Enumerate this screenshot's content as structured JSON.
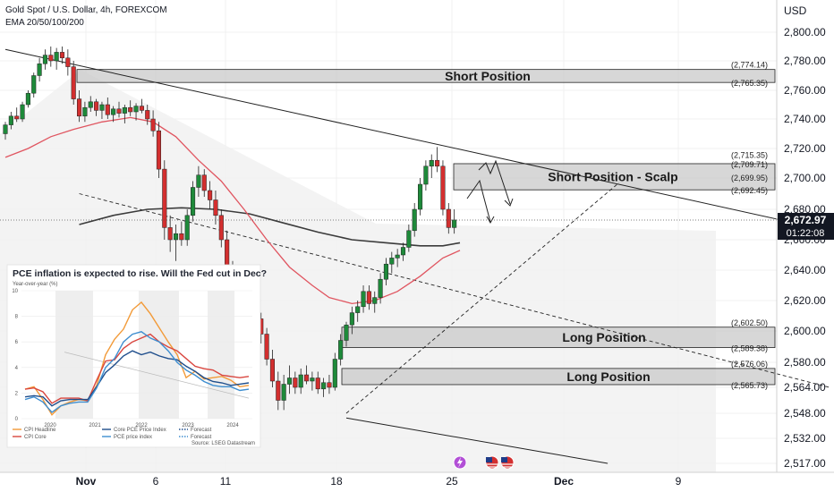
{
  "header": {
    "title": "Gold Spot / U.S. Dollar, 4h, FOREXCOM",
    "indicator": "EMA 20/50/100/200",
    "currency": "USD"
  },
  "colors": {
    "bull": "#1e8a3a",
    "bear": "#d32f2f",
    "ema50": "#e05560",
    "ema200": "#3b3b3b",
    "zone_fill": "#cfcfcf",
    "price_badge": "#131722"
  },
  "chart_data": {
    "type": "candlestick",
    "symbol": "Gold Spot / U.S. Dollar",
    "timeframe": "4h",
    "source": "FOREXCOM",
    "y_ticks": [
      "2,800.00",
      "2,780.00",
      "2,760.00",
      "2,740.00",
      "2,720.00",
      "2,700.00",
      "2,680.00",
      "2,660.00",
      "2,640.00",
      "2,620.00",
      "2,600.00",
      "2,580.00",
      "2,564.00",
      "2,548.00",
      "2,532.00",
      "2,517.00"
    ],
    "x_ticks": [
      "Nov",
      "6",
      "11",
      "18",
      "25",
      "Dec",
      "9"
    ],
    "last_price": "2,672.97",
    "countdown": "01:22:08",
    "trendlines": [
      {
        "name": "upper-downtrend",
        "x": [
          0,
          145
        ],
        "y": [
          2788,
          2666
        ]
      },
      {
        "name": "lower-downtrend",
        "x": [
          60,
          106
        ],
        "y": [
          2545,
          2515
        ]
      },
      {
        "name": "mid-downtrend-dashed",
        "x": [
          13,
          145
        ],
        "y": [
          2690,
          2564
        ]
      },
      {
        "name": "rising-support-dashed",
        "x": [
          60,
          108
        ],
        "y": [
          2548,
          2697
        ]
      }
    ],
    "zones": [
      {
        "label": "Short Position",
        "top": 2774.14,
        "bottom": 2765.35,
        "top_label": "(2,774.14)",
        "bottom_label": "(2,765.35)"
      },
      {
        "label": "Short Position - Scalp",
        "top": 2709.71,
        "bottom": 2692.45,
        "upper_label": "(2,715.35)",
        "top_label": "(2,709.71)",
        "mid_label": "(2,699.95)",
        "bottom_label": "(2,692.45)"
      },
      {
        "label": "Long Position",
        "top": 2602.5,
        "bottom": 2589.38,
        "top_label": "(2,602.50)",
        "bottom_label": "(2,589.38)"
      },
      {
        "label": "Long Position",
        "top": 2576.06,
        "bottom": 2565.73,
        "top_label": "(2,576.06)",
        "bottom_label": "(2,565.73)"
      }
    ],
    "candles": [
      {
        "o": 2730,
        "h": 2738,
        "l": 2726,
        "c": 2736
      },
      {
        "o": 2736,
        "h": 2745,
        "l": 2733,
        "c": 2742
      },
      {
        "o": 2742,
        "h": 2748,
        "l": 2738,
        "c": 2740
      },
      {
        "o": 2740,
        "h": 2752,
        "l": 2738,
        "c": 2750
      },
      {
        "o": 2750,
        "h": 2760,
        "l": 2748,
        "c": 2758
      },
      {
        "o": 2758,
        "h": 2772,
        "l": 2755,
        "c": 2770
      },
      {
        "o": 2770,
        "h": 2782,
        "l": 2766,
        "c": 2778
      },
      {
        "o": 2778,
        "h": 2788,
        "l": 2774,
        "c": 2784
      },
      {
        "o": 2784,
        "h": 2790,
        "l": 2776,
        "c": 2780
      },
      {
        "o": 2780,
        "h": 2789,
        "l": 2774,
        "c": 2786
      },
      {
        "o": 2786,
        "h": 2790,
        "l": 2778,
        "c": 2782
      },
      {
        "o": 2782,
        "h": 2788,
        "l": 2770,
        "c": 2776
      },
      {
        "o": 2776,
        "h": 2780,
        "l": 2750,
        "c": 2754
      },
      {
        "o": 2754,
        "h": 2760,
        "l": 2738,
        "c": 2742
      },
      {
        "o": 2742,
        "h": 2752,
        "l": 2738,
        "c": 2748
      },
      {
        "o": 2748,
        "h": 2756,
        "l": 2745,
        "c": 2752
      },
      {
        "o": 2752,
        "h": 2754,
        "l": 2742,
        "c": 2746
      },
      {
        "o": 2746,
        "h": 2752,
        "l": 2740,
        "c": 2750
      },
      {
        "o": 2750,
        "h": 2755,
        "l": 2740,
        "c": 2743
      },
      {
        "o": 2743,
        "h": 2749,
        "l": 2738,
        "c": 2747
      },
      {
        "o": 2747,
        "h": 2752,
        "l": 2741,
        "c": 2744
      },
      {
        "o": 2744,
        "h": 2750,
        "l": 2737,
        "c": 2748
      },
      {
        "o": 2748,
        "h": 2753,
        "l": 2742,
        "c": 2745
      },
      {
        "o": 2745,
        "h": 2751,
        "l": 2739,
        "c": 2749
      },
      {
        "o": 2749,
        "h": 2754,
        "l": 2744,
        "c": 2746
      },
      {
        "o": 2746,
        "h": 2750,
        "l": 2736,
        "c": 2740
      },
      {
        "o": 2740,
        "h": 2746,
        "l": 2728,
        "c": 2732
      },
      {
        "o": 2732,
        "h": 2738,
        "l": 2700,
        "c": 2706
      },
      {
        "o": 2706,
        "h": 2712,
        "l": 2660,
        "c": 2668
      },
      {
        "o": 2668,
        "h": 2676,
        "l": 2652,
        "c": 2660
      },
      {
        "o": 2660,
        "h": 2670,
        "l": 2646,
        "c": 2664
      },
      {
        "o": 2664,
        "h": 2672,
        "l": 2656,
        "c": 2660
      },
      {
        "o": 2660,
        "h": 2680,
        "l": 2656,
        "c": 2676
      },
      {
        "o": 2676,
        "h": 2698,
        "l": 2672,
        "c": 2694
      },
      {
        "o": 2694,
        "h": 2708,
        "l": 2688,
        "c": 2702
      },
      {
        "o": 2702,
        "h": 2706,
        "l": 2688,
        "c": 2692
      },
      {
        "o": 2692,
        "h": 2698,
        "l": 2680,
        "c": 2686
      },
      {
        "o": 2686,
        "h": 2692,
        "l": 2670,
        "c": 2676
      },
      {
        "o": 2676,
        "h": 2680,
        "l": 2655,
        "c": 2660
      },
      {
        "o": 2660,
        "h": 2666,
        "l": 2636,
        "c": 2642
      },
      {
        "o": 2642,
        "h": 2646,
        "l": 2612,
        "c": 2618
      },
      {
        "o": 2618,
        "h": 2624,
        "l": 2606,
        "c": 2610
      },
      {
        "o": 2610,
        "h": 2616,
        "l": 2600,
        "c": 2612
      },
      {
        "o": 2612,
        "h": 2616,
        "l": 2598,
        "c": 2604
      },
      {
        "o": 2604,
        "h": 2612,
        "l": 2596,
        "c": 2608
      },
      {
        "o": 2608,
        "h": 2612,
        "l": 2592,
        "c": 2598
      },
      {
        "o": 2598,
        "h": 2602,
        "l": 2578,
        "c": 2582
      },
      {
        "o": 2582,
        "h": 2588,
        "l": 2564,
        "c": 2568
      },
      {
        "o": 2568,
        "h": 2574,
        "l": 2550,
        "c": 2556
      },
      {
        "o": 2556,
        "h": 2572,
        "l": 2550,
        "c": 2566
      },
      {
        "o": 2566,
        "h": 2578,
        "l": 2560,
        "c": 2570
      },
      {
        "o": 2570,
        "h": 2574,
        "l": 2560,
        "c": 2564
      },
      {
        "o": 2564,
        "h": 2576,
        "l": 2560,
        "c": 2572
      },
      {
        "o": 2572,
        "h": 2578,
        "l": 2566,
        "c": 2568
      },
      {
        "o": 2568,
        "h": 2574,
        "l": 2562,
        "c": 2570
      },
      {
        "o": 2570,
        "h": 2574,
        "l": 2560,
        "c": 2563
      },
      {
        "o": 2563,
        "h": 2570,
        "l": 2558,
        "c": 2567
      },
      {
        "o": 2567,
        "h": 2572,
        "l": 2560,
        "c": 2564
      },
      {
        "o": 2564,
        "h": 2586,
        "l": 2562,
        "c": 2582
      },
      {
        "o": 2582,
        "h": 2598,
        "l": 2578,
        "c": 2594
      },
      {
        "o": 2594,
        "h": 2606,
        "l": 2590,
        "c": 2604
      },
      {
        "o": 2604,
        "h": 2616,
        "l": 2598,
        "c": 2612
      },
      {
        "o": 2612,
        "h": 2620,
        "l": 2606,
        "c": 2616
      },
      {
        "o": 2616,
        "h": 2630,
        "l": 2612,
        "c": 2626
      },
      {
        "o": 2626,
        "h": 2630,
        "l": 2614,
        "c": 2618
      },
      {
        "o": 2618,
        "h": 2626,
        "l": 2612,
        "c": 2622
      },
      {
        "o": 2622,
        "h": 2638,
        "l": 2618,
        "c": 2634
      },
      {
        "o": 2634,
        "h": 2648,
        "l": 2630,
        "c": 2644
      },
      {
        "o": 2644,
        "h": 2652,
        "l": 2638,
        "c": 2648
      },
      {
        "o": 2648,
        "h": 2654,
        "l": 2642,
        "c": 2650
      },
      {
        "o": 2650,
        "h": 2658,
        "l": 2646,
        "c": 2655
      },
      {
        "o": 2655,
        "h": 2670,
        "l": 2652,
        "c": 2666
      },
      {
        "o": 2666,
        "h": 2684,
        "l": 2662,
        "c": 2680
      },
      {
        "o": 2680,
        "h": 2700,
        "l": 2676,
        "c": 2696
      },
      {
        "o": 2696,
        "h": 2712,
        "l": 2692,
        "c": 2708
      },
      {
        "o": 2708,
        "h": 2716,
        "l": 2700,
        "c": 2712
      },
      {
        "o": 2712,
        "h": 2721,
        "l": 2704,
        "c": 2708
      },
      {
        "o": 2708,
        "h": 2712,
        "l": 2676,
        "c": 2680
      },
      {
        "o": 2680,
        "h": 2684,
        "l": 2664,
        "c": 2668
      },
      {
        "o": 2668,
        "h": 2680,
        "l": 2664,
        "c": 2673
      }
    ],
    "ema50": [
      {
        "x": 0,
        "y": 2714
      },
      {
        "x": 4,
        "y": 2720
      },
      {
        "x": 8,
        "y": 2728
      },
      {
        "x": 12,
        "y": 2733
      },
      {
        "x": 17,
        "y": 2738
      },
      {
        "x": 22,
        "y": 2741
      },
      {
        "x": 26,
        "y": 2738
      },
      {
        "x": 30,
        "y": 2728
      },
      {
        "x": 34,
        "y": 2712
      },
      {
        "x": 38,
        "y": 2698
      },
      {
        "x": 42,
        "y": 2680
      },
      {
        "x": 46,
        "y": 2660
      },
      {
        "x": 50,
        "y": 2642
      },
      {
        "x": 54,
        "y": 2630
      },
      {
        "x": 57,
        "y": 2622
      },
      {
        "x": 61,
        "y": 2618
      },
      {
        "x": 65,
        "y": 2620
      },
      {
        "x": 69,
        "y": 2626
      },
      {
        "x": 73,
        "y": 2636
      },
      {
        "x": 77,
        "y": 2648
      },
      {
        "x": 80,
        "y": 2653
      }
    ],
    "ema200": [
      {
        "x": 13,
        "y": 2670
      },
      {
        "x": 19,
        "y": 2676
      },
      {
        "x": 25,
        "y": 2680
      },
      {
        "x": 31,
        "y": 2681
      },
      {
        "x": 37,
        "y": 2680
      },
      {
        "x": 43,
        "y": 2677
      },
      {
        "x": 49,
        "y": 2671
      },
      {
        "x": 55,
        "y": 2665
      },
      {
        "x": 61,
        "y": 2660
      },
      {
        "x": 67,
        "y": 2658
      },
      {
        "x": 73,
        "y": 2656
      },
      {
        "x": 77,
        "y": 2656
      },
      {
        "x": 80,
        "y": 2658
      }
    ]
  },
  "inset": {
    "title": "PCE inflation is expected to rise. Will the Fed cut in Dec?",
    "subtitle": "Year-over-year (%)",
    "y_ticks": [
      "10",
      "8",
      "6",
      "4",
      "2",
      "0"
    ],
    "x_ticks": [
      "2020",
      "2021",
      "2022",
      "2023",
      "2024"
    ],
    "legend": [
      {
        "label": "CPI Headline",
        "color": "#f29a38",
        "dashed": false
      },
      {
        "label": "Core PCE Price Index",
        "color": "#1f4e8c",
        "dashed": false
      },
      {
        "label": "Forecast",
        "color": "#1f4e8c",
        "dashed": true
      },
      {
        "label": "CPI Core",
        "color": "#d9463f",
        "dashed": false
      },
      {
        "label": "PCE price index",
        "color": "#3e8ed0",
        "dashed": false
      },
      {
        "label": "Forecast",
        "color": "#3e8ed0",
        "dashed": true
      }
    ],
    "source": "Source: LSEG Datastream",
    "series": [
      {
        "name": "CPI Headline",
        "color": "#f29a38",
        "values": [
          2.3,
          2.5,
          1.5,
          0.3,
          1.0,
          1.3,
          1.5,
          1.4,
          2.6,
          5.0,
          6.2,
          7.0,
          8.5,
          9.1,
          8.2,
          7.1,
          6.0,
          5.0,
          3.2,
          3.7,
          3.1,
          3.2,
          3.3,
          3.0,
          2.5,
          2.6
        ]
      },
      {
        "name": "CPI Core",
        "color": "#d9463f",
        "values": [
          2.3,
          2.4,
          2.1,
          1.2,
          1.6,
          1.6,
          1.6,
          1.4,
          3.0,
          4.5,
          4.6,
          5.5,
          6.0,
          6.3,
          6.6,
          6.0,
          5.6,
          5.3,
          4.7,
          4.1,
          3.9,
          3.8,
          3.4,
          3.3,
          3.2,
          3.3
        ]
      },
      {
        "name": "Core PCE Price Index",
        "color": "#1f4e8c",
        "values": [
          1.7,
          1.8,
          1.7,
          1.0,
          1.4,
          1.5,
          1.5,
          1.5,
          2.5,
          3.6,
          4.2,
          4.9,
          5.3,
          5.0,
          5.2,
          4.9,
          4.7,
          4.6,
          4.1,
          3.7,
          3.2,
          2.9,
          2.8,
          2.6,
          2.7,
          2.8
        ]
      },
      {
        "name": "PCE price index",
        "color": "#3e8ed0",
        "values": [
          1.5,
          1.7,
          1.3,
          0.5,
          1.0,
          1.2,
          1.3,
          1.3,
          2.4,
          4.0,
          4.7,
          6.0,
          6.6,
          6.8,
          6.3,
          6.0,
          5.3,
          4.4,
          3.8,
          3.4,
          2.9,
          2.6,
          2.5,
          2.5,
          2.2,
          2.3
        ]
      }
    ]
  }
}
